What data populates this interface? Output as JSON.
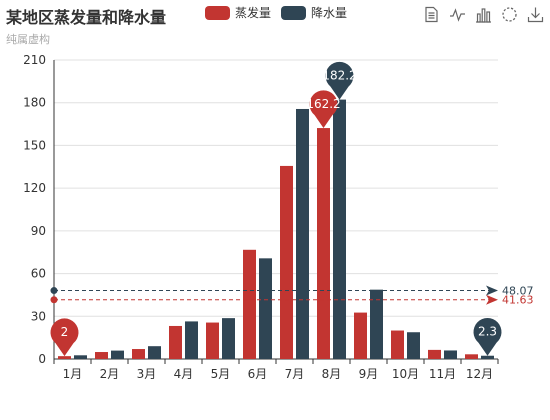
{
  "title": "某地区蒸发量和降水量",
  "subtitle": "纯属虚构",
  "colors": {
    "evaporation": "#c23531",
    "precipitation": "#2f4554",
    "axis": "#333333",
    "grid": "#e0e0e0",
    "icon": "#666666"
  },
  "toolbox": [
    {
      "name": "data-view-icon"
    },
    {
      "name": "line-chart-icon"
    },
    {
      "name": "bar-chart-icon"
    },
    {
      "name": "restore-icon"
    },
    {
      "name": "save-image-icon"
    }
  ],
  "chart_data": {
    "type": "bar",
    "categories": [
      "1月",
      "2月",
      "3月",
      "4月",
      "5月",
      "6月",
      "7月",
      "8月",
      "9月",
      "10月",
      "11月",
      "12月"
    ],
    "series": [
      {
        "name": "蒸发量",
        "values": [
          2.0,
          4.9,
          7.0,
          23.2,
          25.6,
          76.7,
          135.6,
          162.2,
          32.6,
          20.0,
          6.4,
          3.3
        ],
        "mark_max": "162.2",
        "mark_min": "2",
        "average": 41.63,
        "average_label": "41.63"
      },
      {
        "name": "降水量",
        "values": [
          2.6,
          5.9,
          9.0,
          26.4,
          28.7,
          70.7,
          175.6,
          182.2,
          48.7,
          18.8,
          6.0,
          2.3
        ],
        "mark_max": "182.2",
        "mark_min": "2.3",
        "average": 48.07,
        "average_label": "48.07"
      }
    ],
    "y_ticks": [
      "0",
      "30",
      "60",
      "90",
      "120",
      "150",
      "180",
      "210"
    ],
    "ylim": [
      0,
      210
    ],
    "grid": true,
    "legend_position": "top"
  }
}
